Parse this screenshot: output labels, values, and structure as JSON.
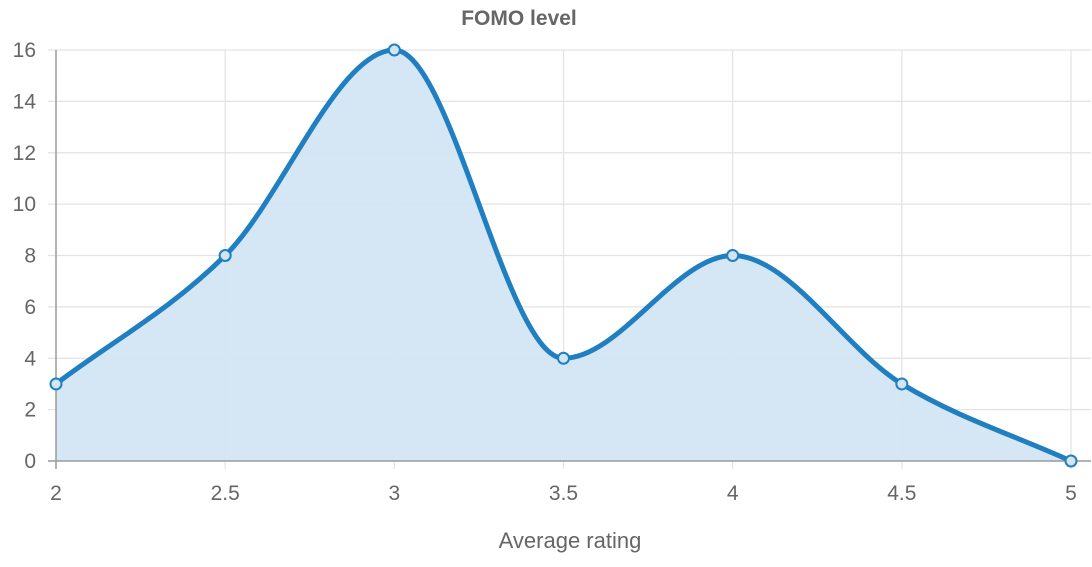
{
  "chart_data": {
    "type": "area",
    "title": "FOMO level",
    "xlabel": "Average rating",
    "ylabel": "",
    "x": [
      2,
      2.5,
      3,
      3.5,
      4,
      4.5,
      5
    ],
    "series": [
      {
        "values": [
          3,
          8,
          16,
          4,
          8,
          3,
          0
        ]
      }
    ],
    "xlim": [
      2,
      5
    ],
    "ylim": [
      0,
      16
    ],
    "x_ticks": [
      "2",
      "2.5",
      "3",
      "3.5",
      "4",
      "4.5",
      "5"
    ],
    "y_ticks": [
      "0",
      "2",
      "4",
      "6",
      "8",
      "10",
      "12",
      "14",
      "16"
    ],
    "grid": true,
    "legend": "none",
    "colors": {
      "line": "#1f7fc0",
      "fill": "#d3e5f3",
      "grid": "#e3e3e3",
      "axis": "#9a9a9a",
      "text": "#666666"
    }
  }
}
